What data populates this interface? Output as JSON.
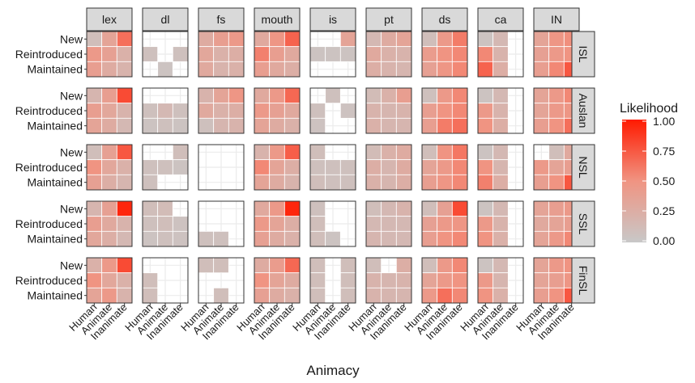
{
  "chart_data": {
    "type": "heatmap",
    "title": "",
    "xlabel": "Animacy",
    "ylabel": "",
    "columns": [
      "lex",
      "dl",
      "fs",
      "mouth",
      "is",
      "pt",
      "ds",
      "ca",
      "IN"
    ],
    "rows": [
      "ISL",
      "Auslan",
      "NSL",
      "SSL",
      "FinSL"
    ],
    "x_categories": [
      "Human",
      "Animate",
      "Inanimate"
    ],
    "y_categories": [
      "New",
      "Reintroduced",
      "Maintained"
    ],
    "legend": {
      "title": "Likelihood",
      "ticks": [
        "1.00",
        "0.75",
        "0.50",
        "0.25",
        "0.00"
      ],
      "low_color": "#c8c8c8",
      "mid_color": "#f09482",
      "high_color": "#ff1a00",
      "placement": "right"
    },
    "cell_order": "each facet: 3 rows (New, Reintroduced, Maintained) x 3 columns (Human, Animate, Inanimate); null = empty",
    "cells": {
      "ISL": {
        "lex": [
          [
            0.1,
            0.35,
            0.65
          ],
          [
            0.45,
            0.38,
            0.22
          ],
          [
            0.4,
            0.28,
            0.2
          ]
        ],
        "dl": [
          [
            null,
            null,
            null
          ],
          [
            0.08,
            null,
            0.08
          ],
          [
            null,
            0.05,
            null
          ]
        ],
        "fs": [
          [
            0.28,
            0.4,
            0.45
          ],
          [
            0.32,
            0.22,
            0.25
          ],
          [
            0.3,
            0.2,
            0.22
          ]
        ],
        "mouth": [
          [
            0.3,
            0.48,
            0.7
          ],
          [
            0.58,
            0.4,
            0.3
          ],
          [
            0.4,
            0.3,
            0.25
          ]
        ],
        "is": [
          [
            null,
            null,
            0.35
          ],
          [
            0.05,
            0.05,
            0.05
          ],
          [
            null,
            null,
            null
          ]
        ],
        "pt": [
          [
            0.15,
            0.28,
            0.35
          ],
          [
            0.3,
            0.22,
            0.2
          ],
          [
            0.25,
            0.2,
            0.18
          ]
        ],
        "ds": [
          [
            0.1,
            0.45,
            0.6
          ],
          [
            0.42,
            0.5,
            0.55
          ],
          [
            0.38,
            0.48,
            0.55
          ]
        ],
        "ca": [
          [
            0.05,
            0.15,
            null
          ],
          [
            0.55,
            0.2,
            null
          ],
          [
            0.7,
            0.25,
            null
          ]
        ],
        "IN": [
          [
            0.35,
            0.48,
            0.52
          ],
          [
            0.38,
            0.45,
            0.5
          ],
          [
            0.4,
            0.55,
            0.75
          ]
        ]
      },
      "Auslan": {
        "lex": [
          [
            0.18,
            0.4,
            0.8
          ],
          [
            0.4,
            0.32,
            0.2
          ],
          [
            0.35,
            0.28,
            0.15
          ]
        ],
        "dl": [
          [
            null,
            null,
            null
          ],
          [
            0.08,
            0.15,
            0.08
          ],
          [
            0.05,
            0.08,
            0.05
          ]
        ],
        "fs": [
          [
            0.2,
            0.35,
            0.48
          ],
          [
            0.3,
            0.22,
            0.25
          ],
          [
            0.08,
            0.18,
            0.2
          ]
        ],
        "mouth": [
          [
            0.3,
            0.45,
            0.68
          ],
          [
            0.45,
            0.38,
            0.3
          ],
          [
            0.35,
            0.28,
            0.22
          ]
        ],
        "is": [
          [
            null,
            0.08,
            null
          ],
          [
            0.08,
            null,
            0.06
          ],
          [
            0.06,
            null,
            null
          ]
        ],
        "pt": [
          [
            0.12,
            0.22,
            0.4
          ],
          [
            0.2,
            0.18,
            0.2
          ],
          [
            0.22,
            0.18,
            0.18
          ]
        ],
        "ds": [
          [
            0.08,
            0.45,
            0.55
          ],
          [
            0.4,
            0.5,
            0.55
          ],
          [
            0.4,
            0.6,
            0.65
          ]
        ],
        "ca": [
          [
            0.05,
            0.15,
            null
          ],
          [
            0.45,
            0.2,
            null
          ],
          [
            0.5,
            0.25,
            null
          ]
        ],
        "IN": [
          [
            0.35,
            0.45,
            0.55
          ],
          [
            0.35,
            0.45,
            0.48
          ],
          [
            0.4,
            0.5,
            0.65
          ]
        ]
      },
      "NSL": {
        "lex": [
          [
            0.1,
            0.38,
            0.75
          ],
          [
            0.5,
            0.32,
            0.22
          ],
          [
            0.38,
            0.25,
            0.18
          ]
        ],
        "dl": [
          [
            null,
            null,
            0.1
          ],
          [
            0.08,
            0.08,
            0.05
          ],
          [
            0.08,
            null,
            null
          ]
        ],
        "fs": [
          [
            null,
            null,
            null
          ],
          [
            null,
            null,
            null
          ],
          [
            null,
            null,
            null
          ]
        ],
        "mouth": [
          [
            0.2,
            0.45,
            0.72
          ],
          [
            0.55,
            0.35,
            0.25
          ],
          [
            0.35,
            0.28,
            0.2
          ]
        ],
        "is": [
          [
            0.1,
            null,
            null
          ],
          [
            0.08,
            0.08,
            0.08
          ],
          [
            0.1,
            0.08,
            0.08
          ]
        ],
        "pt": [
          [
            0.12,
            0.22,
            0.28
          ],
          [
            0.25,
            0.18,
            0.28
          ],
          [
            0.22,
            0.18,
            0.25
          ]
        ],
        "ds": [
          [
            0.1,
            0.5,
            0.62
          ],
          [
            0.35,
            0.45,
            0.55
          ],
          [
            0.4,
            0.48,
            0.55
          ]
        ],
        "ca": [
          [
            0.05,
            0.15,
            null
          ],
          [
            0.5,
            0.18,
            null
          ],
          [
            0.58,
            0.25,
            null
          ]
        ],
        "IN": [
          [
            null,
            0.1,
            0.3
          ],
          [
            0.45,
            0.35,
            0.4
          ],
          [
            0.4,
            0.5,
            0.75
          ]
        ]
      },
      "SSL": {
        "lex": [
          [
            0.18,
            0.38,
            0.95
          ],
          [
            0.4,
            0.3,
            0.2
          ],
          [
            0.32,
            0.25,
            0.15
          ]
        ],
        "dl": [
          [
            0.1,
            0.12,
            null
          ],
          [
            0.08,
            0.1,
            0.06
          ],
          [
            0.05,
            0.08,
            0.06
          ]
        ],
        "fs": [
          [
            null,
            null,
            null
          ],
          [
            null,
            null,
            null
          ],
          [
            0.08,
            0.08,
            null
          ]
        ],
        "mouth": [
          [
            0.3,
            0.45,
            0.95
          ],
          [
            0.45,
            0.35,
            0.25
          ],
          [
            0.38,
            0.28,
            0.22
          ]
        ],
        "is": [
          [
            0.08,
            null,
            null
          ],
          [
            0.1,
            null,
            null
          ],
          [
            0.1,
            0.05,
            null
          ]
        ],
        "pt": [
          [
            0.1,
            0.15,
            0.2
          ],
          [
            0.15,
            0.15,
            0.15
          ],
          [
            0.18,
            0.15,
            0.15
          ]
        ],
        "ds": [
          [
            0.1,
            0.38,
            0.8
          ],
          [
            0.38,
            0.45,
            0.48
          ],
          [
            0.4,
            0.5,
            0.55
          ]
        ],
        "ca": [
          [
            0.05,
            0.15,
            null
          ],
          [
            0.45,
            0.2,
            null
          ],
          [
            0.5,
            0.22,
            null
          ]
        ],
        "IN": [
          [
            0.35,
            0.4,
            0.45
          ],
          [
            0.3,
            0.35,
            0.4
          ],
          [
            0.35,
            0.45,
            0.55
          ]
        ]
      },
      "FinSL": {
        "lex": [
          [
            0.22,
            0.45,
            0.8
          ],
          [
            0.5,
            0.32,
            0.22
          ],
          [
            0.35,
            0.45,
            0.2
          ]
        ],
        "dl": [
          [
            null,
            null,
            null
          ],
          [
            0.1,
            null,
            null
          ],
          [
            0.1,
            null,
            null
          ]
        ],
        "fs": [
          [
            0.1,
            0.1,
            null
          ],
          [
            null,
            null,
            null
          ],
          [
            null,
            0.1,
            null
          ]
        ],
        "mouth": [
          [
            0.28,
            0.42,
            0.68
          ],
          [
            0.5,
            0.35,
            0.28
          ],
          [
            0.38,
            0.28,
            0.22
          ]
        ],
        "is": [
          [
            0.1,
            null,
            0.1
          ],
          [
            0.1,
            null,
            0.1
          ],
          [
            0.1,
            null,
            0.1
          ]
        ],
        "pt": [
          [
            0.1,
            null,
            0.25
          ],
          [
            0.2,
            0.18,
            0.2
          ],
          [
            0.2,
            0.18,
            0.18
          ]
        ],
        "ds": [
          [
            0.1,
            0.45,
            0.55
          ],
          [
            0.35,
            0.45,
            0.5
          ],
          [
            0.45,
            0.65,
            0.55
          ]
        ],
        "ca": [
          [
            0.05,
            0.15,
            null
          ],
          [
            0.45,
            0.18,
            null
          ],
          [
            0.5,
            0.22,
            null
          ]
        ],
        "IN": [
          [
            0.35,
            0.45,
            0.5
          ],
          [
            0.35,
            0.4,
            0.48
          ],
          [
            0.4,
            0.5,
            0.75
          ]
        ]
      }
    }
  }
}
